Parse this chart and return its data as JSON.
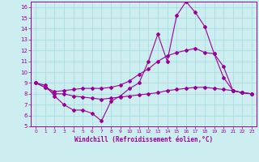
{
  "background_color": "#cceef0",
  "grid_color": "#aadddd",
  "line_color": "#990099",
  "xlim": [
    -0.5,
    23.5
  ],
  "ylim": [
    5,
    16.5
  ],
  "xlabel": "Windchill (Refroidissement éolien,°C)",
  "xticks": [
    0,
    1,
    2,
    3,
    4,
    5,
    6,
    7,
    8,
    9,
    10,
    11,
    12,
    13,
    14,
    15,
    16,
    17,
    18,
    19,
    20,
    21,
    22,
    23
  ],
  "yticks": [
    5,
    6,
    7,
    8,
    9,
    10,
    11,
    12,
    13,
    14,
    15,
    16
  ],
  "series": [
    {
      "x": [
        0,
        1,
        2,
        3,
        4,
        5,
        6,
        7,
        8,
        9,
        10,
        11,
        12,
        13,
        14,
        15,
        16,
        17,
        18,
        19,
        20,
        21,
        22,
        23
      ],
      "y": [
        9.0,
        8.8,
        7.8,
        7.0,
        6.5,
        6.5,
        6.2,
        5.5,
        7.3,
        7.8,
        8.5,
        9.0,
        11.0,
        13.5,
        11.0,
        15.2,
        16.5,
        15.5,
        14.2,
        11.7,
        9.5,
        8.3,
        8.1,
        8.0
      ]
    },
    {
      "x": [
        0,
        1,
        2,
        3,
        4,
        5,
        6,
        7,
        8,
        9,
        10,
        11,
        12,
        13,
        14,
        15,
        16,
        17,
        18,
        19,
        20,
        21,
        22,
        23
      ],
      "y": [
        9.0,
        8.6,
        8.2,
        8.3,
        8.4,
        8.5,
        8.5,
        8.5,
        8.6,
        8.8,
        9.2,
        9.8,
        10.3,
        11.0,
        11.5,
        11.8,
        12.0,
        12.2,
        11.8,
        11.7,
        10.5,
        8.3,
        8.1,
        8.0
      ]
    },
    {
      "x": [
        0,
        1,
        2,
        3,
        4,
        5,
        6,
        7,
        8,
        9,
        10,
        11,
        12,
        13,
        14,
        15,
        16,
        17,
        18,
        19,
        20,
        21,
        22,
        23
      ],
      "y": [
        9.0,
        8.6,
        8.0,
        8.0,
        7.8,
        7.7,
        7.6,
        7.5,
        7.6,
        7.7,
        7.8,
        7.9,
        8.0,
        8.1,
        8.3,
        8.4,
        8.5,
        8.6,
        8.6,
        8.5,
        8.4,
        8.3,
        8.1,
        8.0
      ]
    }
  ]
}
